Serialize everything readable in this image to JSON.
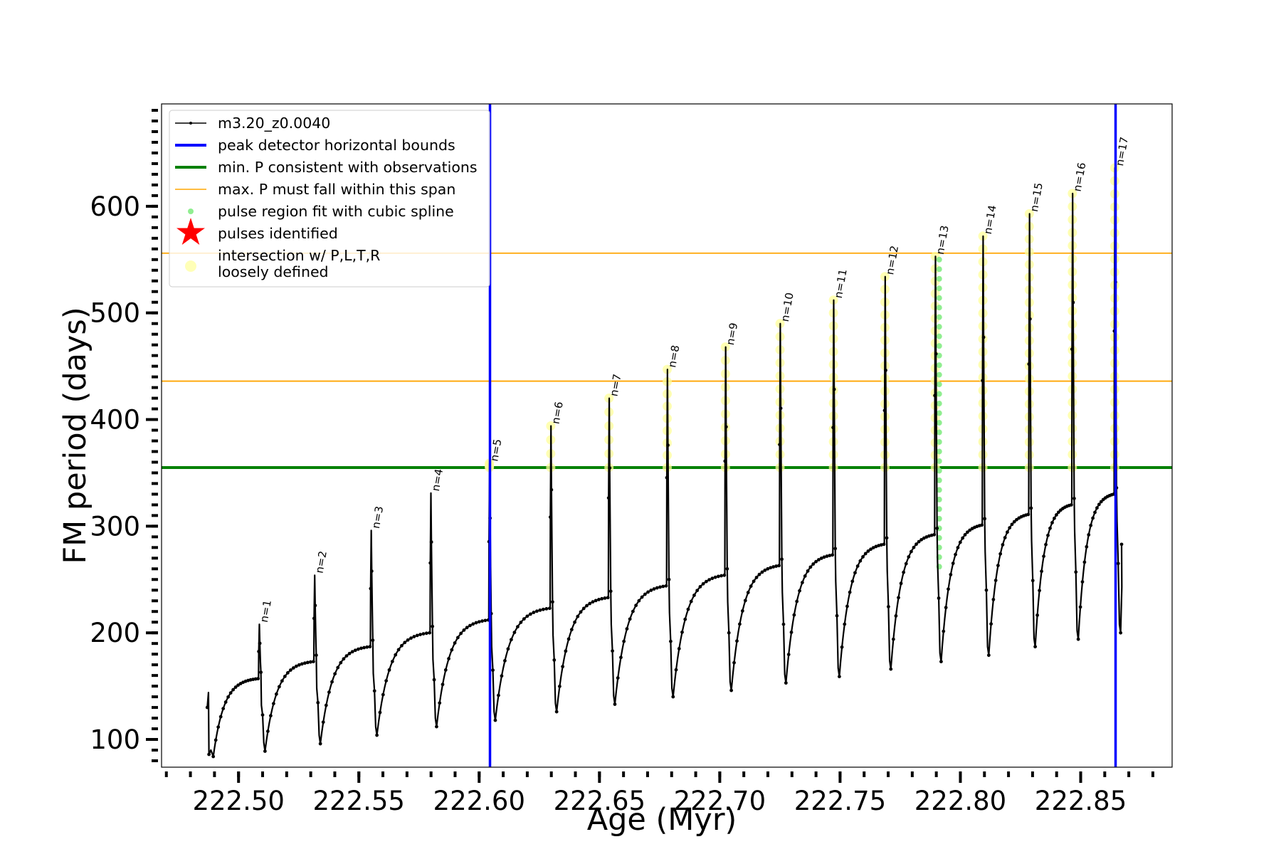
{
  "chart_data": {
    "type": "line",
    "xlabel": "Age (Myr)",
    "ylabel": "FM period (days)",
    "xlim": [
      222.468,
      222.888
    ],
    "ylim": [
      74,
      696
    ],
    "x_ticks": [
      222.5,
      222.55,
      222.6,
      222.65,
      222.7,
      222.75,
      222.8,
      222.85
    ],
    "x_tick_labels": [
      "222.50",
      "222.55",
      "222.60",
      "222.65",
      "222.70",
      "222.75",
      "222.80",
      "222.85"
    ],
    "y_ticks": [
      100,
      200,
      300,
      400,
      500,
      600
    ],
    "y_tick_labels": [
      "100",
      "200",
      "300",
      "400",
      "500",
      "600"
    ],
    "grid": false,
    "legend_position": "top-left",
    "legend": [
      {
        "label": "m3.20_z0.0040",
        "kind": "line-marker",
        "color": "#000000"
      },
      {
        "label": "peak detector horizontal bounds",
        "kind": "line",
        "color": "#0000ff"
      },
      {
        "label": "min. P consistent with observations",
        "kind": "line",
        "color": "#008000"
      },
      {
        "label": "max. P must fall within this span",
        "kind": "thin-line",
        "color": "#ffa500"
      },
      {
        "label": "pulse region fit with cubic spline",
        "kind": "dot",
        "color": "#90ee90"
      },
      {
        "label": "pulses identified",
        "kind": "star",
        "color": "#ff0000"
      },
      {
        "label": "intersection w/ P,L,T,R",
        "label2": "loosely defined",
        "kind": "big-dot",
        "color": "#ffff99"
      }
    ],
    "vertical_lines": [
      {
        "x": 222.6045,
        "color": "#0000ff",
        "name": "peak detector horizontal bounds"
      },
      {
        "x": 222.8645,
        "color": "#0000ff",
        "name": "peak detector horizontal bounds"
      }
    ],
    "horizontal_lines": [
      {
        "y": 355,
        "color": "#008000",
        "name": "min. P consistent with observations"
      },
      {
        "y": 436,
        "color": "#ffa500",
        "name": "max. P must fall within this span"
      },
      {
        "y": 556,
        "color": "#ffa500",
        "name": "max. P must fall within this span"
      }
    ],
    "series": [
      {
        "name": "m3.20_z0.0040",
        "color": "#000000",
        "start": {
          "x": 222.487,
          "y": 130
        },
        "pulses": [
          {
            "n": "n=1",
            "x": 222.5084,
            "pre": 157,
            "peak": 208,
            "min": 89
          },
          {
            "n": "n=2",
            "x": 222.5314,
            "pre": 173,
            "peak": 254,
            "min": 96
          },
          {
            "n": "n=3",
            "x": 222.5549,
            "pre": 187,
            "peak": 296,
            "min": 104
          },
          {
            "n": "n=4",
            "x": 222.5797,
            "pre": 200,
            "peak": 331,
            "min": 112
          },
          {
            "n": "n=5",
            "x": 222.6041,
            "pre": 212,
            "peak": 359,
            "min": 118
          },
          {
            "n": "n=6",
            "x": 222.6296,
            "pre": 223,
            "peak": 394,
            "min": 126
          },
          {
            "n": "n=7",
            "x": 222.6538,
            "pre": 233,
            "peak": 420,
            "min": 133
          },
          {
            "n": "n=8",
            "x": 222.678,
            "pre": 244,
            "peak": 447,
            "min": 140
          },
          {
            "n": "n=9",
            "x": 222.7022,
            "pre": 254,
            "peak": 468,
            "min": 146
          },
          {
            "n": "n=10",
            "x": 222.7249,
            "pre": 263,
            "peak": 490,
            "min": 153
          },
          {
            "n": "n=11",
            "x": 222.7471,
            "pre": 273,
            "peak": 512,
            "min": 159
          },
          {
            "n": "n=12",
            "x": 222.7685,
            "pre": 283,
            "peak": 534,
            "min": 166
          },
          {
            "n": "n=13",
            "x": 222.7894,
            "pre": 292,
            "peak": 553,
            "min": 173
          },
          {
            "n": "n=14",
            "x": 222.8092,
            "pre": 301,
            "peak": 572,
            "min": 179
          },
          {
            "n": "n=15",
            "x": 222.8285,
            "pre": 311,
            "peak": 593,
            "min": 187
          },
          {
            "n": "n=16",
            "x": 222.8464,
            "pre": 320,
            "peak": 612,
            "min": 194
          },
          {
            "n": "n=17",
            "x": 222.864,
            "pre": 330,
            "peak": 636,
            "min": 200
          }
        ],
        "end": {
          "x": 222.867,
          "y": 283
        }
      }
    ],
    "spline_region": {
      "pulse": "n=13",
      "x": 222.7912,
      "y_from": 262,
      "y_to": 553,
      "color": "#90ee90"
    },
    "highlight_color": "#ffff99"
  }
}
